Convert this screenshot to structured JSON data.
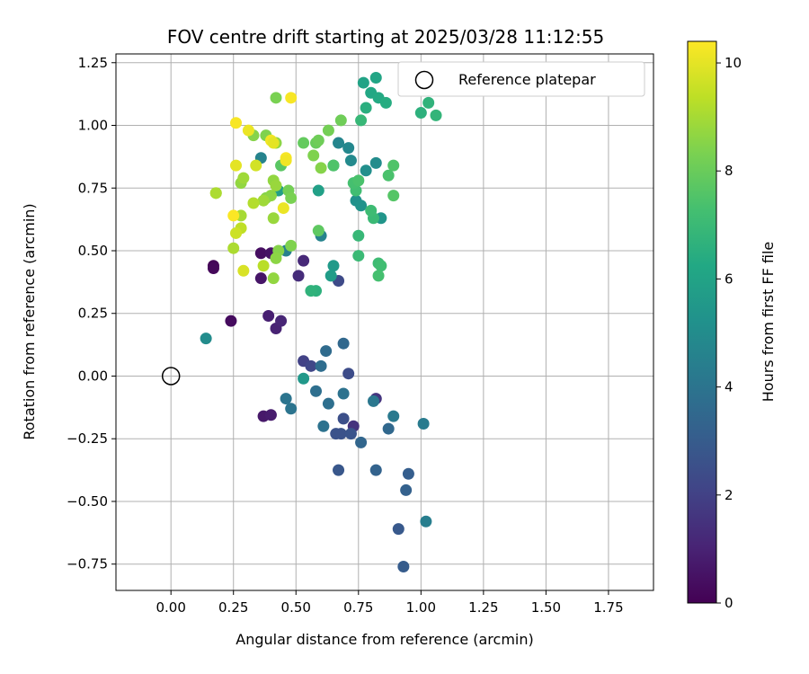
{
  "chart_data": {
    "type": "scatter",
    "title": "FOV centre drift starting at 2025/03/28 11:12:55",
    "xlabel": "Angular distance from reference (arcmin)",
    "ylabel": "Rotation from reference (arcmin)",
    "xlim": [
      -0.22,
      1.93
    ],
    "ylim": [
      -0.855,
      1.285
    ],
    "xticks": [
      0.0,
      0.25,
      0.5,
      0.75,
      1.0,
      1.25,
      1.5,
      1.75
    ],
    "xtick_labels": [
      "0.00",
      "0.25",
      "0.50",
      "0.75",
      "1.00",
      "1.25",
      "1.50",
      "1.75"
    ],
    "yticks": [
      -0.75,
      -0.5,
      -0.25,
      0.0,
      0.25,
      0.5,
      0.75,
      1.0,
      1.25
    ],
    "ytick_labels": [
      "−0.75",
      "−0.50",
      "−0.25",
      "0.00",
      "0.25",
      "0.50",
      "0.75",
      "1.00",
      "1.25"
    ],
    "grid": true,
    "legend": {
      "placement": "top-right",
      "entries": [
        "Reference platepar"
      ]
    },
    "reference": {
      "x": 0.0,
      "y": 0.0,
      "label": "Reference platepar"
    },
    "colorbar": {
      "label": "Hours from first FF file",
      "range": [
        0,
        10.4
      ],
      "colormap": "viridis",
      "ticks": [
        0,
        2,
        4,
        6,
        8,
        10
      ],
      "tick_labels": [
        "0",
        "2",
        "4",
        "6",
        "8",
        "10"
      ]
    },
    "points": [
      {
        "x": 0.17,
        "y": 0.44,
        "t": 0.1
      },
      {
        "x": 0.17,
        "y": 0.43,
        "t": 0.2
      },
      {
        "x": 0.24,
        "y": 0.22,
        "t": 0.3
      },
      {
        "x": 0.36,
        "y": 0.49,
        "t": 0.4
      },
      {
        "x": 0.4,
        "y": 0.49,
        "t": 0.5
      },
      {
        "x": 0.36,
        "y": 0.39,
        "t": 0.6
      },
      {
        "x": 0.37,
        "y": -0.16,
        "t": 0.7
      },
      {
        "x": 0.4,
        "y": -0.155,
        "t": 0.8
      },
      {
        "x": 0.39,
        "y": 0.24,
        "t": 0.9
      },
      {
        "x": 0.42,
        "y": 0.19,
        "t": 1.0
      },
      {
        "x": 0.44,
        "y": 0.22,
        "t": 1.1
      },
      {
        "x": 0.51,
        "y": 0.4,
        "t": 1.3
      },
      {
        "x": 0.53,
        "y": 0.46,
        "t": 1.2
      },
      {
        "x": 0.73,
        "y": -0.2,
        "t": 1.5
      },
      {
        "x": 0.82,
        "y": -0.09,
        "t": 1.6
      },
      {
        "x": 0.53,
        "y": 0.06,
        "t": 2.0
      },
      {
        "x": 0.56,
        "y": 0.04,
        "t": 2.2
      },
      {
        "x": 0.67,
        "y": 0.38,
        "t": 2.3
      },
      {
        "x": 0.71,
        "y": 0.01,
        "t": 2.4
      },
      {
        "x": 0.69,
        "y": -0.17,
        "t": 2.5
      },
      {
        "x": 0.66,
        "y": -0.23,
        "t": 2.6
      },
      {
        "x": 0.68,
        "y": -0.23,
        "t": 2.6
      },
      {
        "x": 0.72,
        "y": -0.23,
        "t": 2.7
      },
      {
        "x": 0.67,
        "y": -0.375,
        "t": 2.8
      },
      {
        "x": 0.91,
        "y": -0.61,
        "t": 2.9
      },
      {
        "x": 0.93,
        "y": -0.76,
        "t": 3.0
      },
      {
        "x": 0.95,
        "y": -0.39,
        "t": 3.1
      },
      {
        "x": 0.94,
        "y": -0.455,
        "t": 3.2
      },
      {
        "x": 0.82,
        "y": -0.375,
        "t": 3.3
      },
      {
        "x": 0.76,
        "y": -0.265,
        "t": 3.4
      },
      {
        "x": 0.87,
        "y": -0.21,
        "t": 3.5
      },
      {
        "x": 0.69,
        "y": 0.13,
        "t": 3.5
      },
      {
        "x": 0.62,
        "y": 0.1,
        "t": 3.6
      },
      {
        "x": 0.6,
        "y": 0.04,
        "t": 3.7
      },
      {
        "x": 0.58,
        "y": -0.06,
        "t": 3.8
      },
      {
        "x": 0.63,
        "y": -0.11,
        "t": 3.8
      },
      {
        "x": 0.61,
        "y": -0.2,
        "t": 3.9
      },
      {
        "x": 0.69,
        "y": -0.07,
        "t": 3.9
      },
      {
        "x": 0.46,
        "y": -0.09,
        "t": 4.0
      },
      {
        "x": 0.48,
        "y": -0.13,
        "t": 4.0
      },
      {
        "x": 0.81,
        "y": -0.1,
        "t": 4.1
      },
      {
        "x": 0.89,
        "y": -0.16,
        "t": 4.2
      },
      {
        "x": 1.01,
        "y": -0.19,
        "t": 4.3
      },
      {
        "x": 1.02,
        "y": -0.58,
        "t": 4.4
      },
      {
        "x": 0.46,
        "y": 0.5,
        "t": 4.5
      },
      {
        "x": 0.36,
        "y": 0.87,
        "t": 4.6
      },
      {
        "x": 0.6,
        "y": 0.56,
        "t": 4.6
      },
      {
        "x": 0.67,
        "y": 0.93,
        "t": 4.7
      },
      {
        "x": 0.71,
        "y": 0.91,
        "t": 4.8
      },
      {
        "x": 0.72,
        "y": 0.86,
        "t": 4.9
      },
      {
        "x": 0.82,
        "y": 0.85,
        "t": 5.0
      },
      {
        "x": 0.78,
        "y": 0.82,
        "t": 5.1
      },
      {
        "x": 0.74,
        "y": 0.7,
        "t": 5.2
      },
      {
        "x": 0.76,
        "y": 0.68,
        "t": 5.3
      },
      {
        "x": 0.84,
        "y": 0.63,
        "t": 5.4
      },
      {
        "x": 0.14,
        "y": 0.15,
        "t": 5.0
      },
      {
        "x": 0.53,
        "y": -0.01,
        "t": 5.5
      },
      {
        "x": 0.65,
        "y": 0.44,
        "t": 5.6
      },
      {
        "x": 0.64,
        "y": 0.4,
        "t": 5.7
      },
      {
        "x": 0.43,
        "y": 0.74,
        "t": 5.8
      },
      {
        "x": 0.59,
        "y": 0.74,
        "t": 5.9
      },
      {
        "x": 0.65,
        "y": 0.84,
        "t": 5.6
      },
      {
        "x": 0.77,
        "y": 1.17,
        "t": 6.0
      },
      {
        "x": 0.82,
        "y": 1.19,
        "t": 6.1
      },
      {
        "x": 0.8,
        "y": 1.13,
        "t": 6.2
      },
      {
        "x": 0.83,
        "y": 1.11,
        "t": 6.3
      },
      {
        "x": 0.86,
        "y": 1.09,
        "t": 6.4
      },
      {
        "x": 0.78,
        "y": 1.07,
        "t": 6.5
      },
      {
        "x": 1.0,
        "y": 1.05,
        "t": 6.6
      },
      {
        "x": 1.03,
        "y": 1.09,
        "t": 6.7
      },
      {
        "x": 1.06,
        "y": 1.04,
        "t": 6.8
      },
      {
        "x": 0.76,
        "y": 1.02,
        "t": 6.9
      },
      {
        "x": 0.58,
        "y": 0.34,
        "t": 6.6
      },
      {
        "x": 0.56,
        "y": 0.34,
        "t": 6.7
      },
      {
        "x": 0.75,
        "y": 0.56,
        "t": 6.9
      },
      {
        "x": 0.75,
        "y": 0.48,
        "t": 7.0
      },
      {
        "x": 0.83,
        "y": 0.45,
        "t": 7.1
      },
      {
        "x": 0.84,
        "y": 0.44,
        "t": 7.2
      },
      {
        "x": 0.83,
        "y": 0.4,
        "t": 7.3
      },
      {
        "x": 0.81,
        "y": 0.63,
        "t": 7.0
      },
      {
        "x": 0.8,
        "y": 0.66,
        "t": 7.1
      },
      {
        "x": 0.74,
        "y": 0.74,
        "t": 7.2
      },
      {
        "x": 0.73,
        "y": 0.77,
        "t": 7.3
      },
      {
        "x": 0.75,
        "y": 0.78,
        "t": 7.4
      },
      {
        "x": 0.87,
        "y": 0.8,
        "t": 7.4
      },
      {
        "x": 0.89,
        "y": 0.84,
        "t": 7.5
      },
      {
        "x": 0.89,
        "y": 0.72,
        "t": 7.6
      },
      {
        "x": 0.65,
        "y": 0.84,
        "t": 7.5
      },
      {
        "x": 0.44,
        "y": 0.84,
        "t": 7.7
      },
      {
        "x": 0.59,
        "y": 0.58,
        "t": 7.8
      },
      {
        "x": 0.53,
        "y": 0.93,
        "t": 7.9
      },
      {
        "x": 0.58,
        "y": 0.93,
        "t": 8.0
      },
      {
        "x": 0.59,
        "y": 0.94,
        "t": 8.1
      },
      {
        "x": 0.68,
        "y": 1.02,
        "t": 8.1
      },
      {
        "x": 0.63,
        "y": 0.98,
        "t": 8.2
      },
      {
        "x": 0.42,
        "y": 1.11,
        "t": 8.3
      },
      {
        "x": 0.57,
        "y": 0.88,
        "t": 8.4
      },
      {
        "x": 0.6,
        "y": 0.83,
        "t": 8.5
      },
      {
        "x": 0.47,
        "y": 0.74,
        "t": 8.2
      },
      {
        "x": 0.48,
        "y": 0.71,
        "t": 8.3
      },
      {
        "x": 0.48,
        "y": 0.52,
        "t": 8.4
      },
      {
        "x": 0.43,
        "y": 0.5,
        "t": 8.5
      },
      {
        "x": 0.42,
        "y": 0.47,
        "t": 8.6
      },
      {
        "x": 0.41,
        "y": 0.39,
        "t": 8.7
      },
      {
        "x": 0.41,
        "y": 0.63,
        "t": 8.8
      },
      {
        "x": 0.38,
        "y": 0.71,
        "t": 8.5
      },
      {
        "x": 0.4,
        "y": 0.72,
        "t": 8.6
      },
      {
        "x": 0.41,
        "y": 0.78,
        "t": 8.7
      },
      {
        "x": 0.42,
        "y": 0.76,
        "t": 8.8
      },
      {
        "x": 0.38,
        "y": 0.96,
        "t": 8.4
      },
      {
        "x": 0.33,
        "y": 0.96,
        "t": 8.5
      },
      {
        "x": 0.42,
        "y": 0.93,
        "t": 8.6
      },
      {
        "x": 0.37,
        "y": 0.7,
        "t": 8.9
      },
      {
        "x": 0.28,
        "y": 0.77,
        "t": 8.7
      },
      {
        "x": 0.29,
        "y": 0.79,
        "t": 8.9
      },
      {
        "x": 0.18,
        "y": 0.73,
        "t": 9.0
      },
      {
        "x": 0.18,
        "y": 0.73,
        "t": 9.1
      },
      {
        "x": 0.28,
        "y": 0.64,
        "t": 9.0
      },
      {
        "x": 0.25,
        "y": 0.51,
        "t": 9.1
      },
      {
        "x": 0.37,
        "y": 0.44,
        "t": 9.3
      },
      {
        "x": 0.33,
        "y": 0.69,
        "t": 9.2
      },
      {
        "x": 0.28,
        "y": 0.59,
        "t": 9.4
      },
      {
        "x": 0.26,
        "y": 0.57,
        "t": 9.6
      },
      {
        "x": 0.29,
        "y": 0.42,
        "t": 9.8
      },
      {
        "x": 0.34,
        "y": 0.84,
        "t": 9.7
      },
      {
        "x": 0.45,
        "y": 0.67,
        "t": 10.1
      },
      {
        "x": 0.26,
        "y": 0.84,
        "t": 10.0
      },
      {
        "x": 0.31,
        "y": 0.98,
        "t": 10.1
      },
      {
        "x": 0.4,
        "y": 0.94,
        "t": 10.2
      },
      {
        "x": 0.41,
        "y": 0.93,
        "t": 10.0
      },
      {
        "x": 0.46,
        "y": 0.87,
        "t": 10.3
      },
      {
        "x": 0.46,
        "y": 0.86,
        "t": 10.2
      },
      {
        "x": 0.26,
        "y": 1.01,
        "t": 10.3
      },
      {
        "x": 0.48,
        "y": 1.11,
        "t": 10.3
      },
      {
        "x": 0.25,
        "y": 0.64,
        "t": 10.35
      }
    ]
  }
}
